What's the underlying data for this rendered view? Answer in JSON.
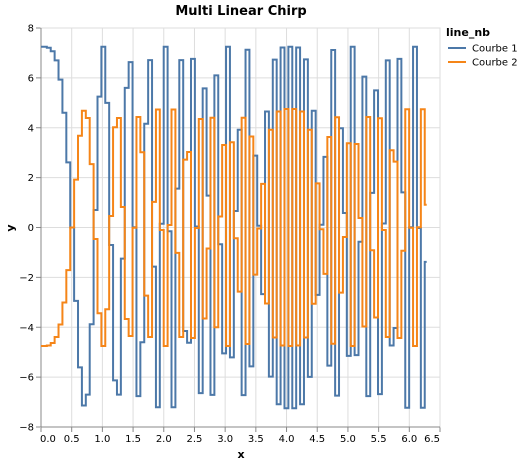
{
  "chart_data": {
    "type": "line",
    "interpolate": "step",
    "title": "Multi Linear Chirp",
    "x_label": "x",
    "y_label": "y",
    "legend_title": "line_nb",
    "legend_position": "right",
    "grid": true,
    "x": [
      0,
      0.063,
      0.127,
      0.19,
      0.254,
      0.317,
      0.381,
      0.444,
      0.508,
      0.571,
      0.635,
      0.698,
      0.762,
      0.825,
      0.889,
      0.952,
      1.015,
      1.079,
      1.142,
      1.206,
      1.269,
      1.333,
      1.396,
      1.46,
      1.523,
      1.587,
      1.65,
      1.714,
      1.777,
      1.841,
      1.904,
      1.967,
      2.031,
      2.094,
      2.158,
      2.221,
      2.285,
      2.348,
      2.412,
      2.475,
      2.539,
      2.602,
      2.666,
      2.729,
      2.793,
      2.856,
      2.919,
      2.983,
      3.046,
      3.11,
      3.173,
      3.237,
      3.3,
      3.364,
      3.427,
      3.491,
      3.554,
      3.618,
      3.681,
      3.744,
      3.808,
      3.871,
      3.935,
      3.998,
      4.062,
      4.125,
      4.189,
      4.252,
      4.316,
      4.379,
      4.443,
      4.506,
      4.57,
      4.633,
      4.697,
      4.76,
      4.823,
      4.887,
      4.95,
      5.014,
      5.077,
      5.141,
      5.204,
      5.268,
      5.331,
      5.395,
      5.458,
      5.522,
      5.585,
      5.649,
      5.712,
      5.776,
      5.839,
      5.902,
      5.966,
      6.029,
      6.093,
      6.156,
      6.22,
      6.283
    ],
    "series": [
      {
        "name": "Courbe 1",
        "color": "#4c78a8",
        "values": [
          7.25,
          7.25,
          7.21,
          7.07,
          6.7,
          5.93,
          4.6,
          2.61,
          0.0,
          -2.94,
          -5.61,
          -7.14,
          -6.7,
          -3.88,
          0.7,
          5.25,
          7.25,
          5.0,
          -0.7,
          -6.13,
          -6.7,
          -1.25,
          5.6,
          6.63,
          0.01,
          -6.76,
          -4.6,
          4.16,
          6.71,
          -1.57,
          -7.21,
          0.15,
          7.25,
          -0.15,
          -7.21,
          1.56,
          6.71,
          -4.15,
          -4.62,
          6.76,
          0.04,
          -6.64,
          5.58,
          1.28,
          -6.71,
          6.1,
          -0.67,
          -5.05,
          7.25,
          -5.21,
          0.66,
          3.92,
          -6.72,
          7.13,
          -5.57,
          2.88,
          0.07,
          -2.67,
          4.65,
          -5.98,
          6.73,
          -7.09,
          7.22,
          -7.25,
          7.25,
          -7.25,
          7.22,
          -7.09,
          6.74,
          -5.99,
          4.68,
          -2.7,
          0.11,
          2.83,
          -5.54,
          7.12,
          -6.74,
          3.98,
          0.58,
          -5.15,
          7.25,
          -5.12,
          -0.57,
          6.05,
          -6.76,
          1.39,
          5.5,
          -6.68,
          0.16,
          6.7,
          -4.73,
          -4.03,
          6.76,
          1.41,
          -7.23,
          0.01,
          7.25,
          -0.02,
          -7.23,
          -1.38
        ]
      },
      {
        "name": "Courbe 2",
        "color": "#f58518",
        "values": [
          -4.75,
          -4.75,
          -4.73,
          -4.63,
          -4.39,
          -3.89,
          -3.01,
          -1.71,
          0.0,
          1.92,
          3.68,
          4.68,
          4.39,
          2.54,
          -0.46,
          -3.44,
          -4.75,
          -3.28,
          0.46,
          4.02,
          4.39,
          0.82,
          -3.67,
          -4.35,
          -0.01,
          4.43,
          3.02,
          -2.73,
          -4.39,
          1.03,
          4.73,
          -0.1,
          -4.75,
          0.1,
          4.73,
          -1.02,
          -4.39,
          2.72,
          3.03,
          -4.43,
          -0.02,
          4.35,
          -3.65,
          -0.84,
          4.4,
          -4.0,
          0.44,
          3.31,
          -4.75,
          3.42,
          -0.43,
          -2.57,
          4.4,
          -4.67,
          3.65,
          -1.89,
          -0.04,
          1.75,
          -3.05,
          3.92,
          -4.41,
          4.65,
          -4.73,
          4.75,
          -4.75,
          4.75,
          -4.73,
          4.65,
          -4.41,
          3.92,
          -3.06,
          1.77,
          -0.07,
          -1.86,
          3.63,
          -4.66,
          4.42,
          -2.61,
          -0.38,
          3.38,
          -4.75,
          3.35,
          0.38,
          -3.97,
          4.43,
          -0.91,
          -3.61,
          4.38,
          -0.1,
          -4.39,
          3.1,
          2.64,
          -4.43,
          -0.93,
          4.74,
          -0.01,
          -4.75,
          0.01,
          4.74,
          0.91
        ]
      }
    ],
    "xlim": [
      0,
      6.5
    ],
    "ylim": [
      -8,
      8
    ],
    "xticks": [
      {
        "value": 0,
        "label": "0.0"
      },
      {
        "value": 0.5,
        "label": "0.5"
      },
      {
        "value": 1,
        "label": "1.0"
      },
      {
        "value": 1.5,
        "label": "1.5"
      },
      {
        "value": 2,
        "label": "2.0"
      },
      {
        "value": 2.5,
        "label": "2.5"
      },
      {
        "value": 3,
        "label": "3.0"
      },
      {
        "value": 3.5,
        "label": "3.5"
      },
      {
        "value": 4,
        "label": "4.0"
      },
      {
        "value": 4.5,
        "label": "4.5"
      },
      {
        "value": 5,
        "label": "5.0"
      },
      {
        "value": 5.5,
        "label": "5.5"
      },
      {
        "value": 6,
        "label": "6.0"
      },
      {
        "value": 6.5,
        "label": "6.5"
      }
    ],
    "yticks": [
      {
        "value": -8,
        "label": "−8"
      },
      {
        "value": -6,
        "label": "−6"
      },
      {
        "value": -4,
        "label": "−4"
      },
      {
        "value": -2,
        "label": "−2"
      },
      0,
      2,
      4,
      6,
      8
    ]
  }
}
